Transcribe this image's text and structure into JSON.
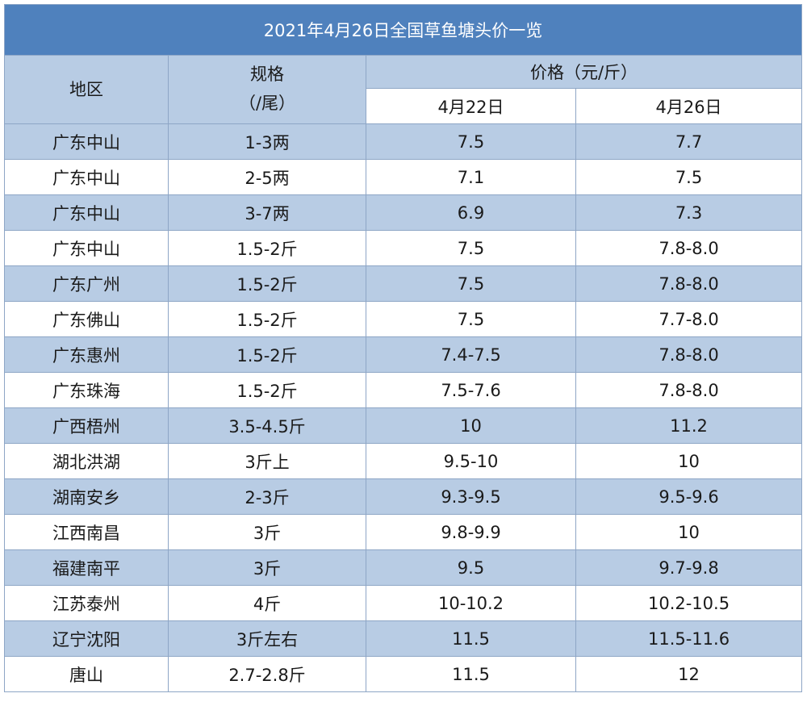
{
  "table": {
    "title": "2021年4月26日全国草鱼塘头价一览",
    "headers": {
      "region": "地区",
      "spec_line1": "规格",
      "spec_line2": "（/尾）",
      "price": "价格（元/斤）",
      "date1": "4月22日",
      "date2": "4月26日"
    },
    "rows": [
      {
        "region": "广东中山",
        "spec": "1-3两",
        "price_0422": "7.5",
        "price_0426": "7.7"
      },
      {
        "region": "广东中山",
        "spec": "2-5两",
        "price_0422": "7.1",
        "price_0426": "7.5"
      },
      {
        "region": "广东中山",
        "spec": "3-7两",
        "price_0422": "6.9",
        "price_0426": "7.3"
      },
      {
        "region": "广东中山",
        "spec": "1.5-2斤",
        "price_0422": "7.5",
        "price_0426": "7.8-8.0"
      },
      {
        "region": "广东广州",
        "spec": "1.5-2斤",
        "price_0422": "7.5",
        "price_0426": "7.8-8.0"
      },
      {
        "region": "广东佛山",
        "spec": "1.5-2斤",
        "price_0422": "7.5",
        "price_0426": "7.7-8.0"
      },
      {
        "region": "广东惠州",
        "spec": "1.5-2斤",
        "price_0422": "7.4-7.5",
        "price_0426": "7.8-8.0"
      },
      {
        "region": "广东珠海",
        "spec": "1.5-2斤",
        "price_0422": "7.5-7.6",
        "price_0426": "7.8-8.0"
      },
      {
        "region": "广西梧州",
        "spec": "3.5-4.5斤",
        "price_0422": "10",
        "price_0426": "11.2"
      },
      {
        "region": "湖北洪湖",
        "spec": "3斤上",
        "price_0422": "9.5-10",
        "price_0426": "10"
      },
      {
        "region": "湖南安乡",
        "spec": "2-3斤",
        "price_0422": "9.3-9.5",
        "price_0426": "9.5-9.6"
      },
      {
        "region": "江西南昌",
        "spec": "3斤",
        "price_0422": "9.8-9.9",
        "price_0426": "10"
      },
      {
        "region": "福建南平",
        "spec": "3斤",
        "price_0422": "9.5",
        "price_0426": "9.7-9.8"
      },
      {
        "region": "江苏泰州",
        "spec": "4斤",
        "price_0422": "10-10.2",
        "price_0426": "10.2-10.5"
      },
      {
        "region": "辽宁沈阳",
        "spec": "3斤左右",
        "price_0422": "11.5",
        "price_0426": "11.5-11.6"
      },
      {
        "region": "唐山",
        "spec": "2.7-2.8斤",
        "price_0422": "11.5",
        "price_0426": "12"
      }
    ]
  },
  "colors": {
    "title_bg": "#4f81bd",
    "band_bg": "#b8cce4",
    "border": "#8ea6c6"
  }
}
